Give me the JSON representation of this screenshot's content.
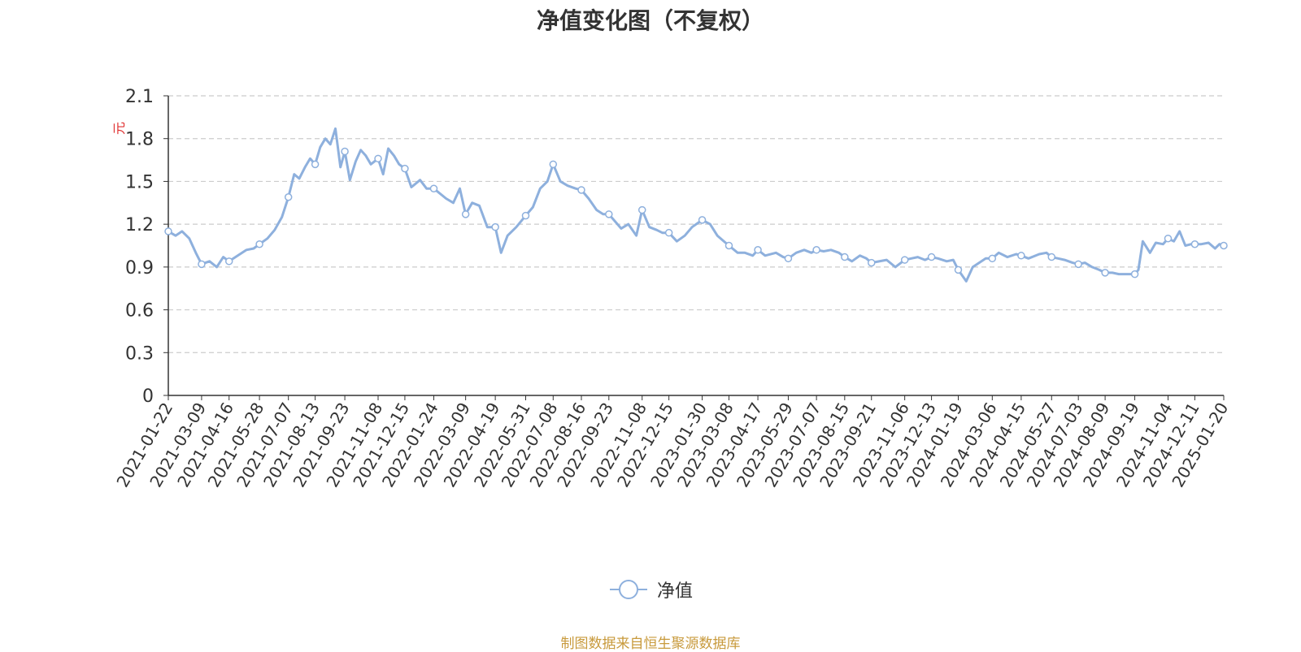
{
  "chart_data": {
    "type": "line",
    "title": "净值变化图（不复权）",
    "ylabel": "元",
    "ylim": [
      0,
      2.1
    ],
    "yticks": [
      "0",
      "0.3",
      "0.6",
      "0.9",
      "1.2",
      "1.5",
      "1.8",
      "2.1"
    ],
    "xtick_labels": [
      "2021-01-22",
      "2021-03-09",
      "2021-04-16",
      "2021-05-28",
      "2021-07-07",
      "2021-08-13",
      "2021-09-23",
      "2021-11-08",
      "2021-12-15",
      "2022-01-24",
      "2022-03-09",
      "2022-04-19",
      "2022-05-31",
      "2022-07-08",
      "2022-08-16",
      "2022-09-23",
      "2022-11-08",
      "2022-12-15",
      "2023-01-30",
      "2023-03-08",
      "2023-04-17",
      "2023-05-29",
      "2023-07-07",
      "2023-08-15",
      "2023-09-21",
      "2023-11-06",
      "2023-12-13",
      "2024-01-19",
      "2024-03-06",
      "2024-04-15",
      "2024-05-27",
      "2024-07-03",
      "2024-08-09",
      "2024-09-19",
      "2024-11-04",
      "2024-12-11",
      "2025-01-20"
    ],
    "grid": true,
    "legend_position": "bottom",
    "series": [
      {
        "name": "净值",
        "color": "#8eb0dd",
        "x": [
          "2021-01-22",
          "2021-02-01",
          "2021-02-10",
          "2021-02-20",
          "2021-03-01",
          "2021-03-09",
          "2021-03-20",
          "2021-03-30",
          "2021-04-08",
          "2021-04-16",
          "2021-04-28",
          "2021-05-10",
          "2021-05-20",
          "2021-05-28",
          "2021-06-08",
          "2021-06-18",
          "2021-06-28",
          "2021-07-07",
          "2021-07-15",
          "2021-07-22",
          "2021-07-30",
          "2021-08-06",
          "2021-08-13",
          "2021-08-20",
          "2021-08-27",
          "2021-09-03",
          "2021-09-10",
          "2021-09-17",
          "2021-09-23",
          "2021-09-30",
          "2021-10-08",
          "2021-10-15",
          "2021-10-22",
          "2021-10-29",
          "2021-11-08",
          "2021-11-15",
          "2021-11-22",
          "2021-11-30",
          "2021-12-07",
          "2021-12-15",
          "2021-12-24",
          "2022-01-05",
          "2022-01-14",
          "2022-01-24",
          "2022-02-10",
          "2022-02-20",
          "2022-03-01",
          "2022-03-09",
          "2022-03-18",
          "2022-03-28",
          "2022-04-08",
          "2022-04-19",
          "2022-04-27",
          "2022-05-06",
          "2022-05-18",
          "2022-05-31",
          "2022-06-10",
          "2022-06-20",
          "2022-06-30",
          "2022-07-08",
          "2022-07-18",
          "2022-07-28",
          "2022-08-08",
          "2022-08-16",
          "2022-08-26",
          "2022-09-06",
          "2022-09-15",
          "2022-09-23",
          "2022-10-10",
          "2022-10-20",
          "2022-10-31",
          "2022-11-08",
          "2022-11-18",
          "2022-11-28",
          "2022-12-06",
          "2022-12-15",
          "2022-12-26",
          "2023-01-06",
          "2023-01-16",
          "2023-01-30",
          "2023-02-10",
          "2023-02-20",
          "2023-03-01",
          "2023-03-08",
          "2023-03-20",
          "2023-03-30",
          "2023-04-10",
          "2023-04-17",
          "2023-04-27",
          "2023-05-12",
          "2023-05-22",
          "2023-05-29",
          "2023-06-09",
          "2023-06-20",
          "2023-06-30",
          "2023-07-07",
          "2023-07-17",
          "2023-07-27",
          "2023-08-07",
          "2023-08-15",
          "2023-08-25",
          "2023-09-05",
          "2023-09-14",
          "2023-09-21",
          "2023-10-12",
          "2023-10-24",
          "2023-11-06",
          "2023-11-15",
          "2023-11-24",
          "2023-12-04",
          "2023-12-13",
          "2023-12-22",
          "2024-01-03",
          "2024-01-12",
          "2024-01-19",
          "2024-01-30",
          "2024-02-08",
          "2024-02-26",
          "2024-03-06",
          "2024-03-15",
          "2024-03-27",
          "2024-04-08",
          "2024-04-15",
          "2024-04-25",
          "2024-05-10",
          "2024-05-20",
          "2024-05-27",
          "2024-06-05",
          "2024-06-14",
          "2024-06-25",
          "2024-07-03",
          "2024-07-12",
          "2024-07-22",
          "2024-08-01",
          "2024-08-09",
          "2024-08-19",
          "2024-08-28",
          "2024-09-06",
          "2024-09-19",
          "2024-09-24",
          "2024-09-30",
          "2024-10-10",
          "2024-10-18",
          "2024-10-28",
          "2024-11-04",
          "2024-11-12",
          "2024-11-20",
          "2024-11-28",
          "2024-12-06",
          "2024-12-11",
          "2024-12-20",
          "2024-12-30",
          "2025-01-08",
          "2025-01-14",
          "2025-01-20"
        ],
        "values": [
          1.15,
          1.12,
          1.15,
          1.1,
          1.0,
          0.92,
          0.94,
          0.9,
          0.97,
          0.94,
          0.98,
          1.02,
          1.03,
          1.06,
          1.1,
          1.16,
          1.25,
          1.39,
          1.55,
          1.52,
          1.6,
          1.66,
          1.62,
          1.74,
          1.8,
          1.76,
          1.87,
          1.6,
          1.71,
          1.51,
          1.64,
          1.72,
          1.68,
          1.62,
          1.66,
          1.55,
          1.73,
          1.68,
          1.62,
          1.59,
          1.46,
          1.51,
          1.45,
          1.45,
          1.38,
          1.35,
          1.45,
          1.27,
          1.35,
          1.33,
          1.18,
          1.18,
          1.0,
          1.12,
          1.18,
          1.26,
          1.32,
          1.45,
          1.5,
          1.62,
          1.5,
          1.47,
          1.45,
          1.44,
          1.38,
          1.3,
          1.27,
          1.27,
          1.17,
          1.2,
          1.12,
          1.3,
          1.18,
          1.16,
          1.14,
          1.14,
          1.08,
          1.12,
          1.18,
          1.23,
          1.2,
          1.12,
          1.08,
          1.05,
          1.0,
          1.0,
          0.98,
          1.02,
          0.98,
          1.0,
          0.97,
          0.96,
          1.0,
          1.02,
          1.0,
          1.02,
          1.01,
          1.02,
          1.0,
          0.97,
          0.94,
          0.98,
          0.96,
          0.93,
          0.95,
          0.9,
          0.95,
          0.96,
          0.97,
          0.95,
          0.97,
          0.96,
          0.94,
          0.95,
          0.88,
          0.8,
          0.9,
          0.96,
          0.96,
          1.0,
          0.97,
          0.99,
          0.98,
          0.96,
          0.99,
          1.0,
          0.97,
          0.96,
          0.95,
          0.93,
          0.92,
          0.93,
          0.9,
          0.88,
          0.86,
          0.86,
          0.85,
          0.85,
          0.85,
          0.88,
          1.08,
          1.0,
          1.07,
          1.06,
          1.1,
          1.08,
          1.15,
          1.05,
          1.06,
          1.06,
          1.06,
          1.07,
          1.03,
          1.06,
          1.05
        ]
      }
    ],
    "marker_dates": [
      "2021-01-22",
      "2021-03-09",
      "2021-04-16",
      "2021-05-28",
      "2021-07-07",
      "2021-08-13",
      "2021-09-23",
      "2021-11-08",
      "2021-12-15",
      "2022-01-24",
      "2022-03-09",
      "2022-04-19",
      "2022-05-31",
      "2022-07-08",
      "2022-08-16",
      "2022-09-23",
      "2022-11-08",
      "2022-12-15",
      "2023-01-30",
      "2023-03-08",
      "2023-04-17",
      "2023-05-29",
      "2023-07-07",
      "2023-08-15",
      "2023-09-21",
      "2023-11-06",
      "2023-12-13",
      "2024-01-19",
      "2024-03-06",
      "2024-04-15",
      "2024-05-27",
      "2024-07-03",
      "2024-08-09",
      "2024-09-19",
      "2024-11-04",
      "2024-12-11",
      "2025-01-20"
    ]
  },
  "legend": {
    "label": "净值"
  },
  "source_note": "制图数据来自恒生聚源数据库",
  "colors": {
    "axis": "#333333",
    "grid": "#cccccc",
    "ylabel": "#e03030",
    "line": "#8eb0dd"
  }
}
